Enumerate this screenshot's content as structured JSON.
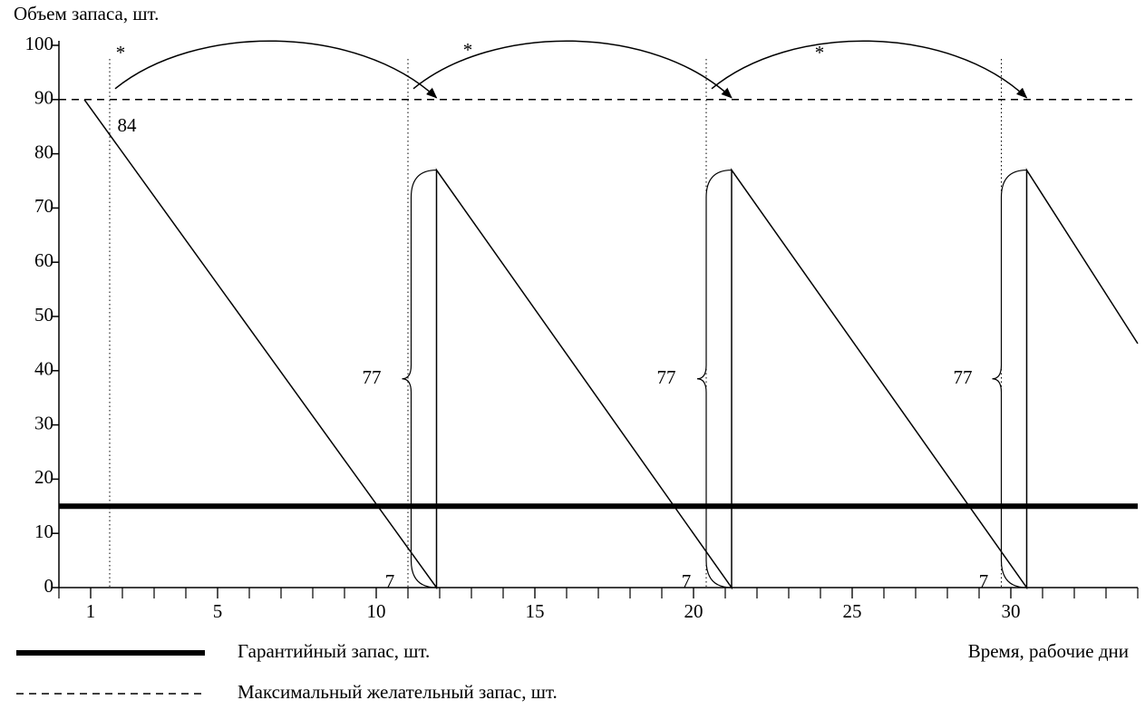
{
  "chart_data": {
    "type": "line",
    "y_label": "Объем запаса, шт.",
    "x_label": "Время, рабочие дни",
    "xlim": [
      0,
      34
    ],
    "ylim": [
      0,
      100
    ],
    "xticks": [
      1,
      5,
      10,
      15,
      20,
      25,
      30
    ],
    "yticks": [
      0,
      10,
      20,
      30,
      40,
      50,
      60,
      70,
      80,
      90,
      100
    ],
    "series": [
      {
        "color": "#000000",
        "x": [
          0.8,
          11.9,
          11.9,
          21.2,
          21.2,
          30.5,
          30.5,
          34
        ],
        "values": [
          90,
          0,
          77,
          0,
          77,
          0,
          77,
          45
        ]
      }
    ],
    "reference_lines": [
      {
        "name": "Гарантийный запас, шт.",
        "value": 15,
        "style": "solid"
      },
      {
        "name": "Максимальный желательный запас, шт.",
        "value": 90,
        "style": "dashed"
      }
    ],
    "order_points": [
      1.6,
      11,
      20.4,
      29.7
    ],
    "annotations": [
      "*",
      "*",
      "*",
      "84",
      "77",
      "77",
      "77",
      "7",
      "7",
      "7"
    ]
  }
}
